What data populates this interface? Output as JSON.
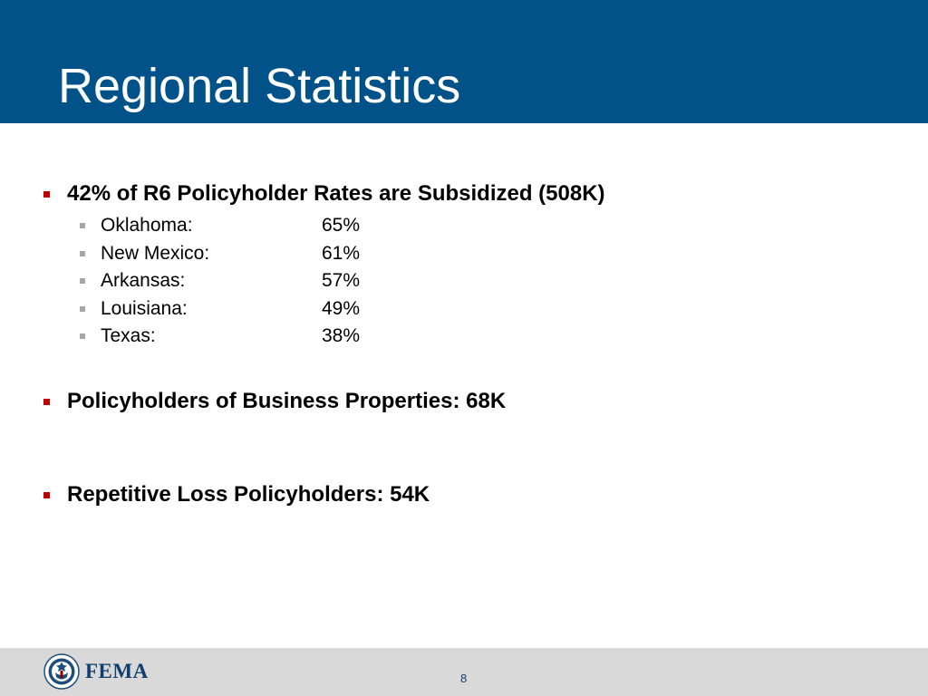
{
  "slide": {
    "title": "Regional Statistics",
    "accent_color": "#015288",
    "bullet_color": "#c00000",
    "sub_bullet_color": "#a6a6a6"
  },
  "bullets": [
    {
      "text": "42% of R6 Policyholder Rates are Subsidized (508K)",
      "sub_items": [
        {
          "state": "Oklahoma:",
          "value": "65%"
        },
        {
          "state": "New Mexico:",
          "value": "61%"
        },
        {
          "state": "Arkansas:",
          "value": "57%"
        },
        {
          "state": "Louisiana:",
          "value": "49%"
        },
        {
          "state": "Texas:",
          "value": "38%"
        }
      ]
    },
    {
      "text": "Policyholders of Business Properties:  68K"
    },
    {
      "text": "Repetitive Loss Policyholders:  54K"
    }
  ],
  "footer": {
    "logo_text": "FEMA",
    "logo_icon": "dhs-seal-icon",
    "page_number": "8"
  }
}
